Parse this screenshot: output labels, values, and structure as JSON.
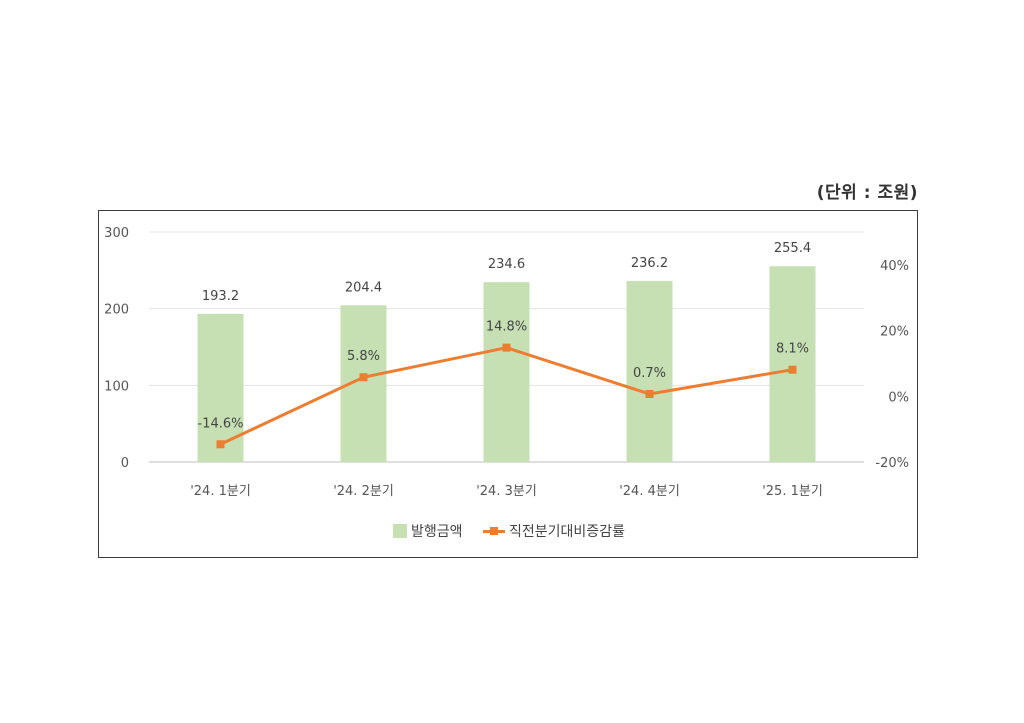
{
  "unit_label": "(단위 : 조원)",
  "chart_data": {
    "type": "bar",
    "categories": [
      "'24. 1분기",
      "'24. 2분기",
      "'24. 3분기",
      "'24. 4분기",
      "'25. 1분기"
    ],
    "series": [
      {
        "name": "발행금액",
        "type": "bar",
        "axis": "left",
        "color": "#c6e0b4",
        "values": [
          193.2,
          204.4,
          234.6,
          236.2,
          255.4
        ],
        "labels": [
          "193.2",
          "204.4",
          "234.6",
          "236.2",
          "255.4"
        ]
      },
      {
        "name": "직전분기대비증감률",
        "type": "line",
        "axis": "right",
        "color": "#ed7d31",
        "values": [
          -14.6,
          5.8,
          14.8,
          0.7,
          8.1
        ],
        "labels": [
          "-14.6%",
          "5.8%",
          "14.8%",
          "0.7%",
          "8.1%"
        ]
      }
    ],
    "y_left": {
      "min": 0,
      "max": 300,
      "ticks": [
        "0",
        "100",
        "200",
        "300"
      ]
    },
    "y_right": {
      "min": -20,
      "max": 50,
      "ticks": [
        "-20%",
        "0%",
        "20%",
        "40%"
      ]
    },
    "grid": true,
    "legend_position": "bottom"
  }
}
